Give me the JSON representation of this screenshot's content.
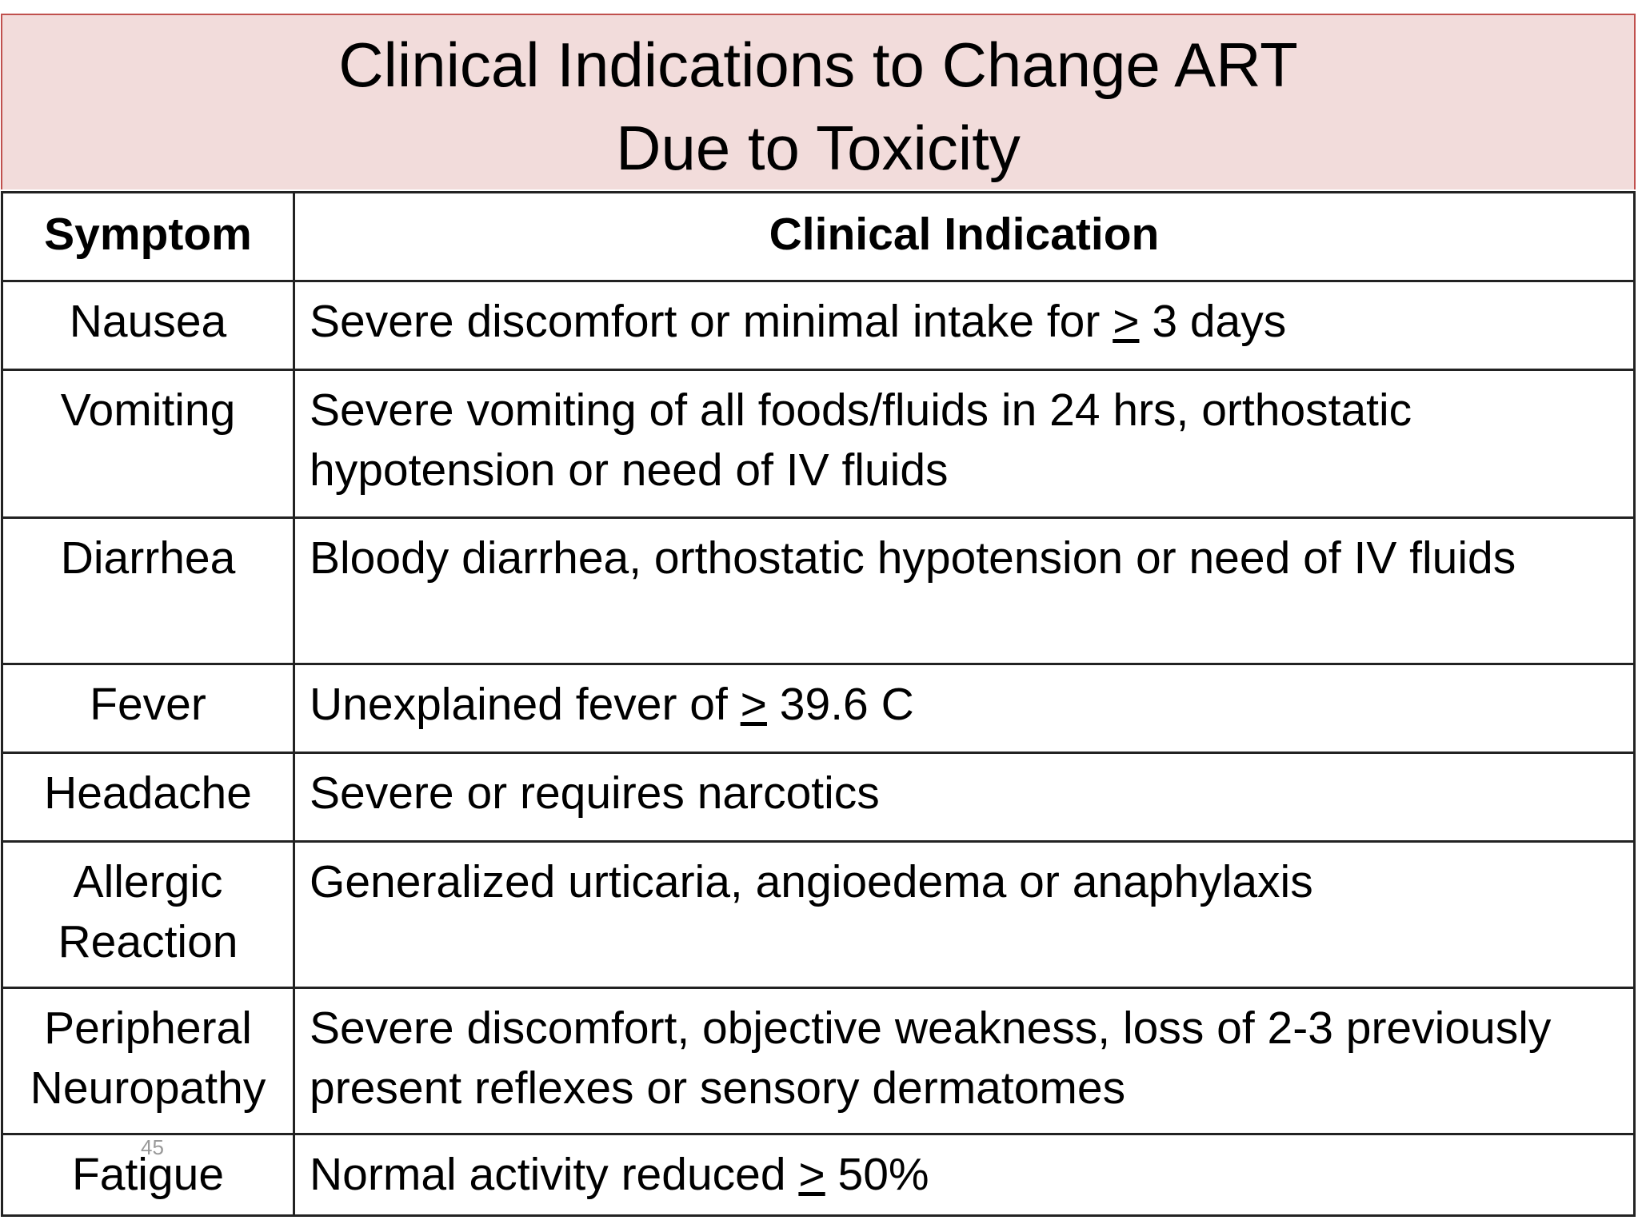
{
  "title": [
    "Clinical Indications to Change ART",
    "Due to Toxicity"
  ],
  "table": {
    "header": [
      "Symptom",
      "Clinical Indication"
    ],
    "rows": [
      [
        "Nausea",
        [
          "Severe discomfort or minimal intake for ",
          ">",
          " 3 days"
        ]
      ],
      [
        "Vomiting",
        "Severe vomiting of all foods/fluids in 24 hrs, orthostatic hypotension or need of IV fluids"
      ],
      [
        "Diarrhea",
        "Bloody diarrhea, orthostatic hypotension or need of IV fluids"
      ],
      [
        "Fever",
        [
          "Unexplained fever of ",
          ">",
          " 39.6 C"
        ]
      ],
      [
        "Headache",
        "Severe or requires narcotics"
      ],
      [
        "Allergic Reaction",
        "Generalized urticaria, angioedema or anaphylaxis"
      ],
      [
        "Peripheral Neuropathy",
        "Severe discomfort, objective weakness, loss of 2-3 previously present reflexes or sensory dermatomes"
      ],
      [
        "Fatigue",
        [
          "Normal activity reduced ",
          ">",
          " 50%"
        ]
      ]
    ]
  },
  "page_number": "45"
}
